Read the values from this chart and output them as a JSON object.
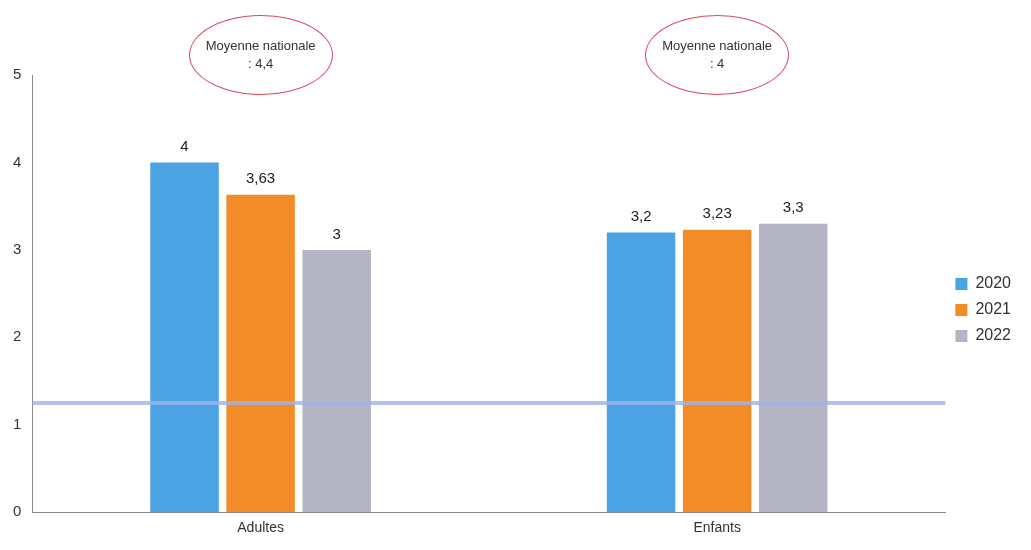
{
  "chart_data": {
    "type": "bar",
    "categories": [
      "Adultes",
      "Enfants"
    ],
    "series": [
      {
        "name": "2020",
        "color": "#4ba3e3",
        "values": [
          4,
          3.2
        ],
        "value_labels": [
          "4",
          "3,2"
        ]
      },
      {
        "name": "2021",
        "color": "#f28c28",
        "values": [
          3.63,
          3.23
        ],
        "value_labels": [
          "3,63",
          "3,23"
        ]
      },
      {
        "name": "2022",
        "color": "#b4b4c4",
        "values": [
          3,
          3.3
        ],
        "value_labels": [
          "3",
          "3,3"
        ]
      }
    ],
    "ylim": [
      0,
      5
    ],
    "yticks": [
      0,
      1,
      2,
      3,
      4,
      5
    ],
    "grid": false,
    "legend": "right",
    "ref_lines": [
      {
        "axis": "y",
        "value": 1.25,
        "color": "#9fb3e8"
      }
    ],
    "annotations": [
      "Moyenne nationale : 4,4",
      "Moyenne nationale : 4"
    ]
  }
}
